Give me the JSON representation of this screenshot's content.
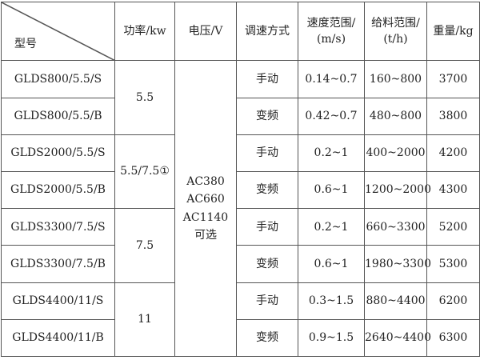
{
  "headers": {
    "model": "型号",
    "power": "功率/kw",
    "voltage": "电压/V",
    "speed_mode": "调速方式",
    "speed_range": "速度范围/",
    "speed_unit": "(m/s)",
    "feed_range": "给料范围/",
    "feed_unit": "(t/h)",
    "weight": "重量/kg"
  },
  "power_groups": [
    "5.5",
    "5.5/7.5①",
    "7.5",
    "11"
  ],
  "voltage": {
    "line1": "AC380",
    "line2": "AC660",
    "line3": "AC1140",
    "line4": "可选"
  },
  "rows": [
    {
      "model": "GLDS800/5.5/S",
      "mode": "手动",
      "speed": "0.14~0.7",
      "feed": "160~800",
      "weight": "3700"
    },
    {
      "model": "GLDS800/5.5/B",
      "mode": "变频",
      "speed": "0.42~0.7",
      "feed": "480~800",
      "weight": "3800"
    },
    {
      "model": "GLDS2000/5.5/S",
      "mode": "手动",
      "speed": "0.2~1",
      "feed": "400~2000",
      "weight": "4200"
    },
    {
      "model": "GLDS2000/5.5/B",
      "mode": "变频",
      "speed": "0.6~1",
      "feed": "1200~2000",
      "weight": "4300"
    },
    {
      "model": "GLDS3300/7.5/S",
      "mode": "手动",
      "speed": "0.2~1",
      "feed": "660~3300",
      "weight": "5200"
    },
    {
      "model": "GLDS3300/7.5/B",
      "mode": "变频",
      "speed": "0.6~1",
      "feed": "1980~3300",
      "weight": "5300"
    },
    {
      "model": "GLDS4400/11/S",
      "mode": "手动",
      "speed": "0.3~1.5",
      "feed": "880~4400",
      "weight": "6200"
    },
    {
      "model": "GLDS4400/11/B",
      "mode": "变频",
      "speed": "0.9~1.5",
      "feed": "2640~4400",
      "weight": "6300"
    }
  ]
}
